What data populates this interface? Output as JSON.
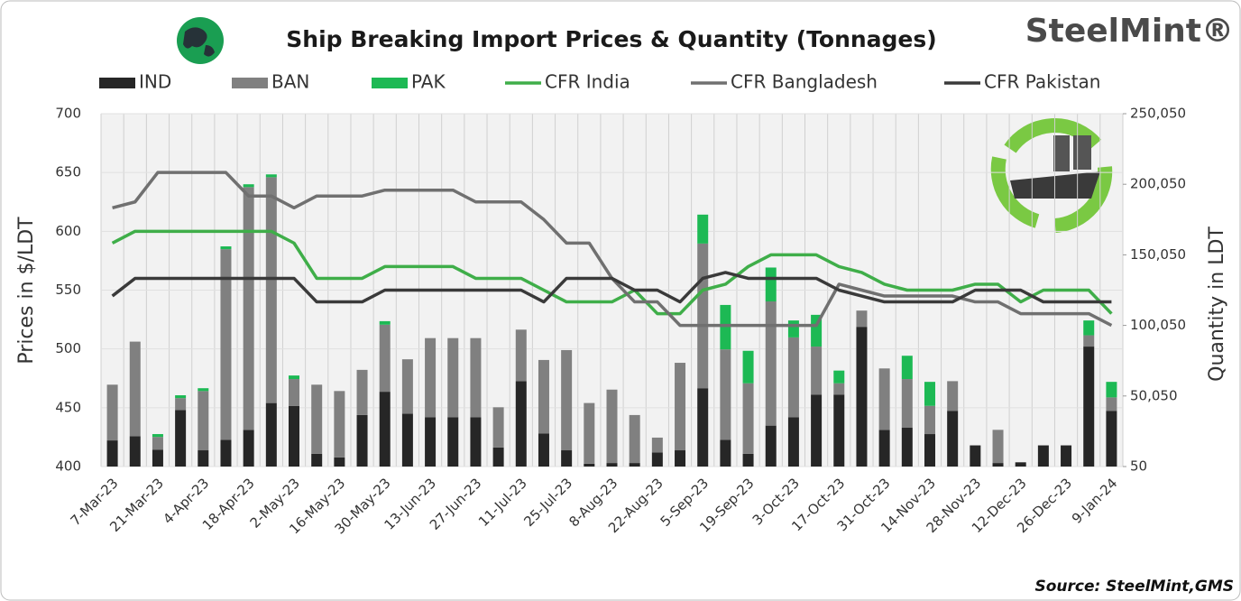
{
  "chart_data": {
    "type": "bar_line",
    "title": "Ship Breaking Import Prices & Quantity (Tonnages)",
    "logo": "SteelMint®",
    "source": "Source: SteelMint,GMS",
    "y_label": "Prices in $/LDT",
    "y2_label": "Quantity in LDT",
    "legend": "top",
    "stacked": true,
    "categories": [
      "7-Mar-23",
      null,
      "21-Mar-23",
      null,
      "4-Apr-23",
      null,
      "18-Apr-23",
      null,
      "2-May-23",
      null,
      "16-May-23",
      null,
      "30-May-23",
      null,
      "13-Jun-23",
      null,
      "27-Jun-23",
      null,
      "11-Jul-23",
      null,
      "25-Jul-23",
      null,
      "8-Aug-23",
      null,
      "22-Aug-23",
      null,
      "5-Sep-23",
      null,
      "19-Sep-23",
      null,
      "3-Oct-23",
      null,
      "17-Oct-23",
      null,
      "31-Oct-23",
      null,
      "14-Nov-23",
      null,
      "28-Nov-23",
      null,
      "12-Dec-23",
      null,
      "26-Dec-23",
      null,
      "9-Jan-24"
    ],
    "ylim": [
      400,
      700
    ],
    "yticks": [
      400,
      450,
      500,
      550,
      600,
      650,
      700
    ],
    "y2lim": [
      50,
      250050
    ],
    "y2ticks": [
      50,
      {
        "value": 50050,
        "label": "50,050"
      },
      {
        "value": 100050,
        "label": "100,050"
      },
      {
        "value": 150050,
        "label": "150,050"
      },
      {
        "value": 200050,
        "label": "200,050"
      },
      {
        "value": 250050,
        "label": "250,050"
      }
    ],
    "series": [
      {
        "name": "IND",
        "type": "bar",
        "axis": "y2",
        "color": "#262626",
        "values": [
          18500,
          21500,
          12000,
          40000,
          11500,
          19000,
          26000,
          45000,
          43000,
          9000,
          6500,
          36500,
          53000,
          37500,
          35000,
          35000,
          35000,
          13500,
          60500,
          23500,
          11500,
          2000,
          2500,
          2500,
          10000,
          11500,
          55500,
          19000,
          9000,
          29000,
          35000,
          51000,
          51000,
          99000,
          26000,
          27500,
          23000,
          39500,
          15000,
          2500,
          3000,
          15000,
          15000,
          85000,
          39500
        ]
      },
      {
        "name": "BAN",
        "type": "bar",
        "axis": "y2",
        "color": "#808080",
        "values": [
          39500,
          67000,
          9000,
          8500,
          42000,
          135000,
          172000,
          160000,
          19000,
          49000,
          47000,
          32000,
          47500,
          38500,
          56000,
          56000,
          56000,
          28500,
          36500,
          52000,
          71000,
          43000,
          52000,
          34000,
          10500,
          62000,
          102500,
          64000,
          50000,
          88000,
          56500,
          34000,
          8000,
          11500,
          43500,
          34500,
          20000,
          21000,
          0,
          23500,
          0,
          0,
          0,
          8000,
          9500
        ]
      },
      {
        "name": "PAK",
        "type": "bar",
        "axis": "y2",
        "color": "#1db954",
        "values": [
          0,
          0,
          2000,
          2000,
          2000,
          2000,
          2000,
          2000,
          2500,
          0,
          0,
          0,
          2500,
          0,
          0,
          0,
          0,
          0,
          0,
          0,
          0,
          0,
          0,
          0,
          0,
          0,
          20500,
          31500,
          23000,
          24000,
          12000,
          22500,
          9000,
          0,
          0,
          16500,
          17000,
          0,
          0,
          0,
          0,
          0,
          0,
          10500,
          11000
        ]
      },
      {
        "name": "CFR India",
        "type": "line",
        "axis": "y",
        "color": "#3fae49",
        "values": [
          590,
          600,
          600,
          600,
          600,
          600,
          600,
          600,
          590,
          560,
          560,
          560,
          570,
          570,
          570,
          570,
          560,
          560,
          560,
          550,
          540,
          540,
          540,
          550,
          530,
          530,
          550,
          555,
          570,
          580,
          580,
          580,
          570,
          565,
          555,
          550,
          550,
          550,
          555,
          555,
          540,
          550,
          550,
          550,
          530
        ]
      },
      {
        "name": "CFR Bangladesh",
        "type": "line",
        "axis": "y",
        "color": "#707070",
        "values": [
          620,
          625,
          650,
          650,
          650,
          650,
          630,
          630,
          620,
          630,
          630,
          630,
          635,
          635,
          635,
          635,
          625,
          625,
          625,
          610,
          590,
          590,
          560,
          540,
          540,
          520,
          520,
          520,
          520,
          520,
          520,
          520,
          555,
          550,
          545,
          545,
          545,
          545,
          540,
          540,
          530,
          530,
          530,
          530,
          520
        ]
      },
      {
        "name": "CFR Pakistan",
        "type": "line",
        "axis": "y",
        "color": "#3a3a3a",
        "values": [
          545,
          560,
          560,
          560,
          560,
          560,
          560,
          560,
          560,
          540,
          540,
          540,
          550,
          550,
          550,
          550,
          550,
          550,
          550,
          540,
          560,
          560,
          560,
          550,
          550,
          540,
          560,
          565,
          560,
          560,
          560,
          560,
          550,
          545,
          540,
          540,
          540,
          540,
          550,
          550,
          550,
          540,
          540,
          540,
          540
        ]
      }
    ]
  }
}
